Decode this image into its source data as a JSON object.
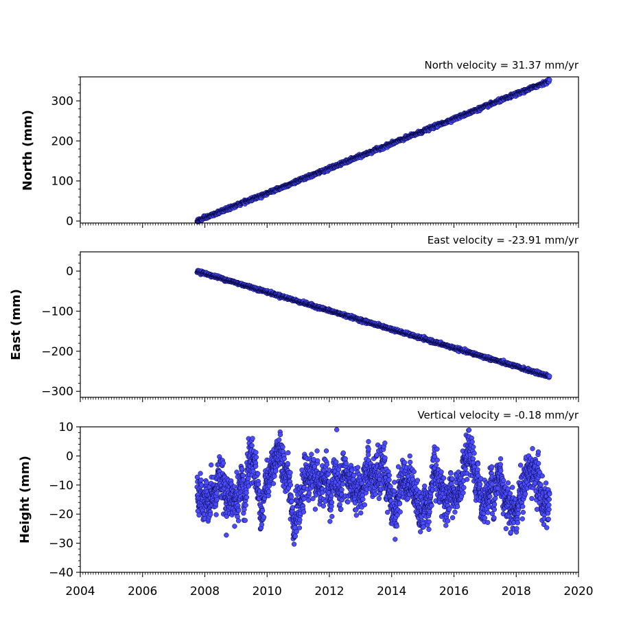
{
  "figure": {
    "xlim": [
      2004,
      2020
    ],
    "x_ticks": [
      2004,
      2006,
      2008,
      2010,
      2012,
      2014,
      2016,
      2018,
      2020
    ]
  },
  "marker_colors": {
    "fill": "#4b4bff",
    "edge": "#000033"
  },
  "chart_data": [
    {
      "type": "scatter",
      "title": "North velocity = 31.37 mm/yr",
      "ylabel": "North (mm)",
      "ylim": [
        -5,
        360
      ],
      "y_ticks": [
        0,
        100,
        200,
        300
      ],
      "x_tick_labels_shown": false,
      "series": [
        {
          "x_range": [
            2007.75,
            2019.07
          ],
          "trend_start": 0,
          "trend_end": 350,
          "noise_sd": 2.0,
          "n_points": 1500
        }
      ]
    },
    {
      "type": "scatter",
      "title": "East velocity = -23.91 mm/yr",
      "ylabel": "East (mm)",
      "ylim": [
        -315,
        48
      ],
      "y_ticks": [
        0,
        -100,
        -200,
        -300
      ],
      "x_tick_labels_shown": false,
      "series": [
        {
          "x_range": [
            2007.75,
            2019.07
          ],
          "trend_start": 0,
          "trend_end": -263,
          "noise_sd": 1.8,
          "n_points": 1500
        }
      ]
    },
    {
      "type": "scatter",
      "title": "Vertical velocity = -0.18 mm/yr",
      "ylabel": "Height (mm)",
      "ylim": [
        -40,
        10
      ],
      "y_ticks": [
        10,
        0,
        -10,
        -20,
        -30,
        -40
      ],
      "x_tick_labels_shown": true,
      "series": [
        {
          "x_range": [
            2007.75,
            2019.07
          ],
          "trend_start": -10,
          "trend_end": -11.5,
          "noise_sd": 4.5,
          "n_points": 2300
        }
      ]
    }
  ]
}
